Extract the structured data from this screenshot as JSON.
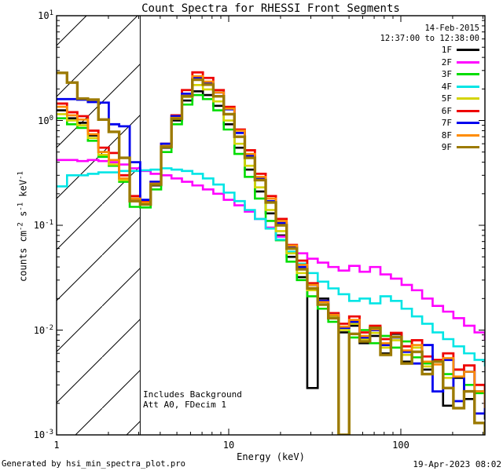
{
  "title": "Count Spectra for RHESSI Front Segments",
  "legend": {
    "date": "14-Feb-2015",
    "time": "12:37:00 to 12:38:00"
  },
  "annotation": {
    "line1": "Includes Background",
    "line2": "Att A0, FDecim 1"
  },
  "footer": {
    "left": "Generated by hsi_min_spectra_plot.pro",
    "right": "19-Apr-2023 08:02"
  },
  "chart_data": {
    "type": "line",
    "title": "Count Spectra for RHESSI Front Segments",
    "xlabel": "Energy (keV)",
    "ylabel": "counts cm^-2 s^-1 keV^-1",
    "x_scale": "log",
    "y_scale": "log",
    "xlim": [
      1,
      308
    ],
    "ylim": [
      0.001,
      10
    ],
    "x_ticks": [
      "1",
      "10",
      "100"
    ],
    "y_ticks": [
      "10^1",
      "10^0",
      "10^-1",
      "10^-2",
      "10^-3"
    ],
    "grid": false,
    "legend_position": "top-right-inside",
    "step": "after",
    "hatched_region_kev": [
      1,
      3.06
    ],
    "energies_kev": [
      1.0,
      1.15,
      1.32,
      1.52,
      1.75,
      2.01,
      2.31,
      2.66,
      3.06,
      3.52,
      4.05,
      4.65,
      5.35,
      6.15,
      7.08,
      8.14,
      9.36,
      10.8,
      12.4,
      14.2,
      16.4,
      18.8,
      21.7,
      24.9,
      28.6,
      32.9,
      37.9,
      43.5,
      50.1,
      57.6,
      66.2,
      76.1,
      87.6,
      101,
      116,
      133,
      153,
      176,
      202,
      233,
      268,
      308
    ],
    "series": [
      {
        "name": "1F",
        "color": "#000000",
        "width": 2.6,
        "values": [
          1.25,
          1.05,
          0.95,
          0.72,
          0.5,
          0.4,
          0.28,
          0.18,
          0.16,
          0.24,
          0.55,
          1.0,
          1.55,
          1.9,
          1.75,
          1.38,
          0.92,
          0.55,
          0.34,
          0.21,
          0.13,
          0.08,
          0.05,
          0.032,
          0.0028,
          0.02,
          0.013,
          0.0095,
          0.011,
          0.0075,
          0.0088,
          0.006,
          0.0092,
          0.005,
          0.0062,
          0.0042,
          0.005,
          0.0019,
          0.0035,
          0.0022,
          0.0026,
          0.0014
        ]
      },
      {
        "name": "2F",
        "color": "#ff00ff",
        "width": 2.6,
        "values": [
          0.42,
          0.42,
          0.41,
          0.42,
          0.41,
          0.4,
          0.38,
          0.35,
          0.33,
          0.31,
          0.3,
          0.28,
          0.26,
          0.24,
          0.22,
          0.2,
          0.175,
          0.155,
          0.135,
          0.115,
          0.095,
          0.078,
          0.064,
          0.054,
          0.048,
          0.044,
          0.04,
          0.037,
          0.041,
          0.036,
          0.04,
          0.034,
          0.031,
          0.027,
          0.024,
          0.02,
          0.017,
          0.015,
          0.013,
          0.011,
          0.0095,
          0.008
        ]
      },
      {
        "name": "3F",
        "color": "#00dd00",
        "width": 2.6,
        "values": [
          1.05,
          0.92,
          0.85,
          0.64,
          0.45,
          0.37,
          0.26,
          0.15,
          0.148,
          0.22,
          0.5,
          0.92,
          1.42,
          1.75,
          1.6,
          1.25,
          0.82,
          0.48,
          0.29,
          0.18,
          0.11,
          0.072,
          0.045,
          0.03,
          0.021,
          0.016,
          0.012,
          0.0105,
          0.0085,
          0.01,
          0.0075,
          0.0088,
          0.0068,
          0.0078,
          0.0055,
          0.0048,
          0.0052,
          0.0038,
          0.0042,
          0.003,
          0.0025,
          0.0018
        ]
      },
      {
        "name": "4F",
        "color": "#00e5e5",
        "width": 2.6,
        "values": [
          0.235,
          0.3,
          0.3,
          0.31,
          0.32,
          0.32,
          0.33,
          0.33,
          0.335,
          0.34,
          0.35,
          0.34,
          0.33,
          0.31,
          0.28,
          0.245,
          0.205,
          0.17,
          0.14,
          0.115,
          0.093,
          0.073,
          0.056,
          0.043,
          0.035,
          0.029,
          0.025,
          0.022,
          0.019,
          0.02,
          0.018,
          0.021,
          0.019,
          0.016,
          0.0135,
          0.0115,
          0.0095,
          0.0082,
          0.007,
          0.006,
          0.0052,
          0.0045
        ]
      },
      {
        "name": "5F",
        "color": "#d4d400",
        "width": 2.6,
        "values": [
          1.15,
          1.0,
          0.9,
          0.68,
          0.47,
          0.38,
          0.27,
          0.17,
          0.158,
          0.25,
          0.57,
          1.05,
          1.68,
          2.18,
          1.98,
          1.52,
          1.0,
          0.6,
          0.37,
          0.23,
          0.14,
          0.088,
          0.054,
          0.035,
          0.024,
          0.0175,
          0.0135,
          0.01,
          0.0115,
          0.0082,
          0.0094,
          0.0068,
          0.008,
          0.0058,
          0.0068,
          0.0045,
          0.0052,
          0.0035,
          0.0042,
          0.0026,
          0.003,
          0.0016
        ]
      },
      {
        "name": "6F",
        "color": "#ee0000",
        "width": 2.8,
        "values": [
          1.45,
          1.2,
          1.1,
          0.8,
          0.55,
          0.49,
          0.3,
          0.19,
          0.17,
          0.26,
          0.6,
          1.12,
          1.95,
          2.88,
          2.55,
          1.95,
          1.35,
          0.82,
          0.52,
          0.31,
          0.19,
          0.115,
          0.065,
          0.046,
          0.028,
          0.019,
          0.0145,
          0.0115,
          0.0135,
          0.0095,
          0.011,
          0.0082,
          0.0094,
          0.007,
          0.008,
          0.0056,
          0.0052,
          0.006,
          0.0042,
          0.0046,
          0.003,
          0.0022
        ]
      },
      {
        "name": "7F",
        "color": "#0000ee",
        "width": 2.8,
        "values": [
          1.6,
          1.6,
          1.58,
          1.5,
          1.48,
          0.92,
          0.88,
          0.4,
          0.175,
          0.26,
          0.6,
          1.1,
          1.8,
          2.55,
          2.3,
          1.85,
          1.28,
          0.76,
          0.46,
          0.28,
          0.17,
          0.105,
          0.062,
          0.04,
          0.027,
          0.019,
          0.014,
          0.0105,
          0.012,
          0.0085,
          0.01,
          0.0072,
          0.0085,
          0.0062,
          0.0048,
          0.0072,
          0.0026,
          0.0052,
          0.0021,
          0.004,
          0.0016,
          0.0024
        ]
      },
      {
        "name": "8F",
        "color": "#ff8c00",
        "width": 2.6,
        "values": [
          1.35,
          1.12,
          1.02,
          0.74,
          0.5,
          0.42,
          0.28,
          0.18,
          0.165,
          0.25,
          0.57,
          1.06,
          1.72,
          2.65,
          2.35,
          1.85,
          1.3,
          0.8,
          0.48,
          0.29,
          0.18,
          0.11,
          0.064,
          0.042,
          0.027,
          0.0185,
          0.014,
          0.0108,
          0.0125,
          0.0088,
          0.0102,
          0.0075,
          0.0086,
          0.0064,
          0.0072,
          0.005,
          0.0047,
          0.0054,
          0.0036,
          0.004,
          0.0026,
          0.0018
        ]
      },
      {
        "name": "9F",
        "color": "#9c7a00",
        "width": 3.4,
        "values": [
          2.85,
          2.3,
          1.62,
          1.58,
          1.02,
          0.78,
          0.44,
          0.17,
          0.158,
          0.245,
          0.56,
          1.04,
          1.7,
          2.45,
          2.2,
          1.7,
          1.15,
          0.7,
          0.44,
          0.27,
          0.165,
          0.1,
          0.06,
          0.038,
          0.025,
          0.0175,
          0.013,
          0.001,
          0.0092,
          0.0078,
          0.0105,
          0.0058,
          0.0086,
          0.0048,
          0.0062,
          0.0038,
          0.005,
          0.0028,
          0.0018,
          0.0026,
          0.0013,
          0.001
        ]
      }
    ]
  }
}
